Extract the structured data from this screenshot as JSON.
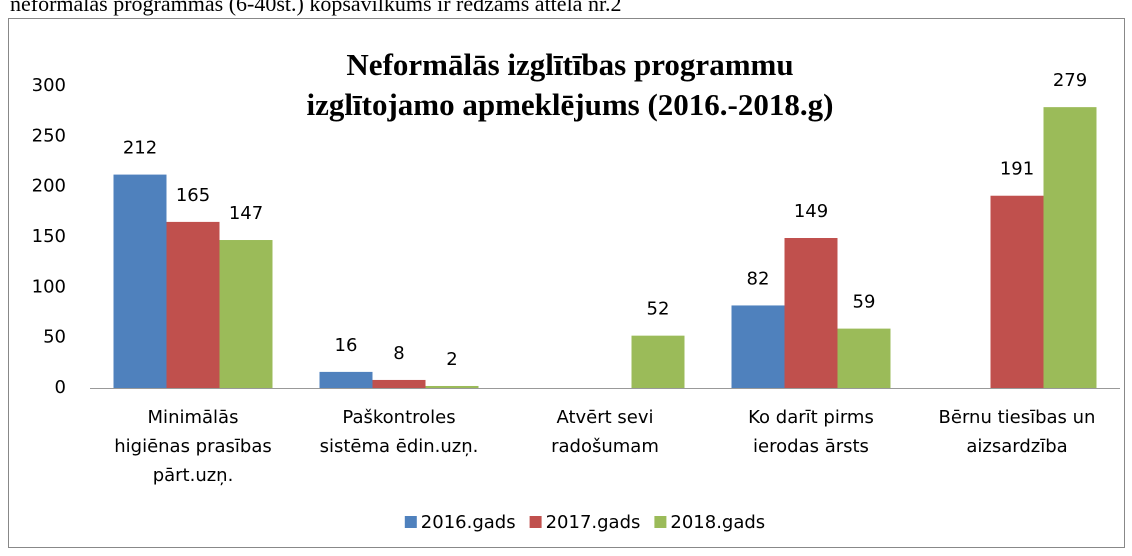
{
  "text_above": "neformālās programmas (6-40st.) kopsavilkums ir redzams attēlā nr.2",
  "chart_data": {
    "type": "bar",
    "title": [
      "Neformālās izglītības programmu",
      "izglītojamo apmeklējums (2016.-2018.g)"
    ],
    "categories": [
      [
        "Minimālās",
        "higiēnas prasības",
        "pārt.uzņ."
      ],
      [
        "Paškontroles",
        "sistēma ēdin.uzņ."
      ],
      [
        "Atvērt sevi",
        "radošumam"
      ],
      [
        "Ko darīt pirms",
        "ierodas ārsts"
      ],
      [
        "Bērnu tiesības un",
        "aizsardzība"
      ]
    ],
    "series": [
      {
        "name": "2016.gads",
        "color": "#4f81bd",
        "values": [
          212,
          16,
          null,
          82,
          null
        ]
      },
      {
        "name": "2017.gads",
        "color": "#c0504d",
        "values": [
          165,
          8,
          null,
          149,
          191
        ]
      },
      {
        "name": "2018.gads",
        "color": "#9bbb59",
        "values": [
          147,
          2,
          52,
          59,
          279
        ]
      }
    ],
    "ylim": [
      0,
      300
    ],
    "yticks": [
      0,
      50,
      100,
      150,
      200,
      250,
      300
    ],
    "grid": false,
    "legend": "bottom"
  }
}
